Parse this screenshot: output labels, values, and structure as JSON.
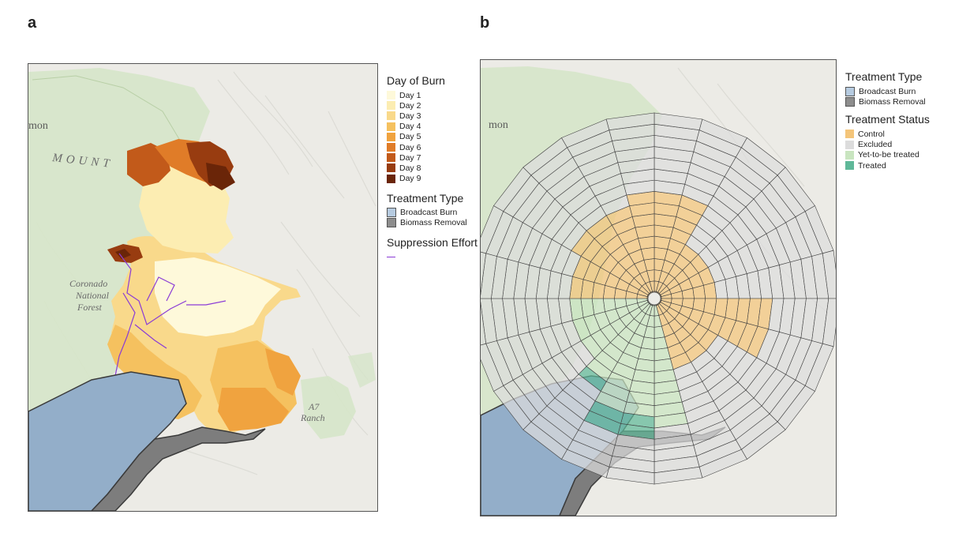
{
  "panel_a": {
    "letter": "a",
    "map_labels": {
      "mountains": "MOUNT",
      "place_fragment": "mon",
      "forest": [
        "Coronado",
        "National",
        "Forest"
      ],
      "ranch": [
        "A7",
        "Ranch"
      ]
    },
    "legend": {
      "day_of_burn_title": "Day of Burn",
      "days": [
        {
          "label": "Day 1",
          "color": "#fef9da"
        },
        {
          "label": "Day 2",
          "color": "#fcedb2"
        },
        {
          "label": "Day 3",
          "color": "#f9d98b"
        },
        {
          "label": "Day 4",
          "color": "#f5c15f"
        },
        {
          "label": "Day 5",
          "color": "#f0a33f"
        },
        {
          "label": "Day 6",
          "color": "#e07c28"
        },
        {
          "label": "Day 7",
          "color": "#c25a1a"
        },
        {
          "label": "Day 8",
          "color": "#983c10"
        },
        {
          "label": "Day 9",
          "color": "#6a2508"
        }
      ],
      "treatment_type_title": "Treatment Type",
      "treatment_types": [
        {
          "label": "Broadcast Burn",
          "color": "#b6cbe0"
        },
        {
          "label": "Biomass Removal",
          "color": "#8d8d8d"
        }
      ],
      "suppression_title": "Suppression Effort",
      "suppression_color": "#8a3bd6"
    }
  },
  "panel_b": {
    "letter": "b",
    "map_labels": {
      "place_fragment": "mon"
    },
    "legend": {
      "treatment_type_title": "Treatment Type",
      "treatment_types": [
        {
          "label": "Broadcast Burn",
          "color": "#b6cbe0"
        },
        {
          "label": "Biomass Removal",
          "color": "#8d8d8d"
        }
      ],
      "treatment_status_title": "Treatment Status",
      "statuses": [
        {
          "label": "Control",
          "color": "#f4c57a"
        },
        {
          "label": "Excluded",
          "color": "#dcdcdc"
        },
        {
          "label": "Yet-to-be treated",
          "color": "#c9e5c0"
        },
        {
          "label": "Treated",
          "color": "#5fb899"
        }
      ]
    }
  }
}
